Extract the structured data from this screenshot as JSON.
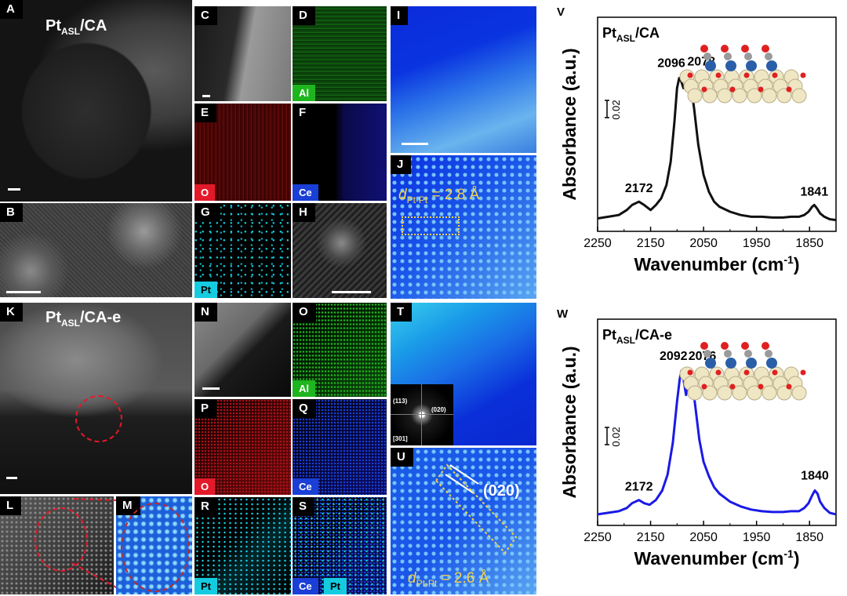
{
  "panels": {
    "A": "A",
    "B": "B",
    "C": "C",
    "D": "D",
    "E": "E",
    "F": "F",
    "G": "G",
    "H": "H",
    "I": "I",
    "J": "J",
    "K": "K",
    "L": "L",
    "M": "M",
    "N": "N",
    "O": "O",
    "P": "P",
    "Q": "Q",
    "R": "R",
    "S": "S",
    "T": "T",
    "U": "U",
    "V": "V",
    "W": "W"
  },
  "titles": {
    "top": {
      "main": "Pt",
      "sub": "ASL",
      "suffix": "/CA"
    },
    "bottom": {
      "main": "Pt",
      "sub": "ASL",
      "suffix": "/CA-e"
    }
  },
  "elements": {
    "al": "Al",
    "o": "O",
    "ce": "Ce",
    "pt": "Pt"
  },
  "colors": {
    "al": "#1fb51f",
    "o": "#e3192a",
    "ce": "#1a3fd6",
    "pt": "#15cbe0",
    "top_line": "#111111",
    "bottom_line": "#1a1ae6"
  },
  "annotations": {
    "d_symbol": "d",
    "d_sub": "Pt-Pt",
    "top_d_value": " = 2.8 Å",
    "bottom_d_value": " = 2.6 Å",
    "plane_label": "(020)",
    "fft_113": "(113)",
    "fft_020": "(020)",
    "fft_301": "[301]"
  },
  "chart_data": [
    {
      "type": "line",
      "panel": "V",
      "title": "Pt_ASL/CA",
      "xlabel": "Wavenumber (cm-1)",
      "ylabel": "Absorbance (a.u.)",
      "xlim": [
        2250,
        1800
      ],
      "x_ticks": [
        2250,
        2150,
        2050,
        1950,
        1850
      ],
      "x_tick_labels": [
        "2250",
        "2150",
        "2050",
        "1950",
        "1850"
      ],
      "scale_bar": "0.02",
      "peaks": [
        {
          "x": 2172,
          "y": 0.14,
          "label": "2172"
        },
        {
          "x": 2096,
          "y": 0.88,
          "label": "2096"
        },
        {
          "x": 2078,
          "y": 0.89,
          "label": "2078"
        },
        {
          "x": 1841,
          "y": 0.12,
          "label": "1841"
        }
      ],
      "series": [
        {
          "name": "Pt_ASL/CA",
          "x": [
            2250,
            2230,
            2210,
            2195,
            2185,
            2172,
            2162,
            2150,
            2140,
            2130,
            2120,
            2112,
            2105,
            2100,
            2096,
            2092,
            2088,
            2085,
            2082,
            2078,
            2074,
            2068,
            2060,
            2050,
            2040,
            2030,
            2020,
            2000,
            1980,
            1960,
            1940,
            1920,
            1900,
            1885,
            1870,
            1860,
            1852,
            1845,
            1841,
            1836,
            1830,
            1822,
            1812,
            1800
          ],
          "y": [
            0.04,
            0.05,
            0.06,
            0.09,
            0.12,
            0.14,
            0.12,
            0.09,
            0.12,
            0.16,
            0.24,
            0.38,
            0.62,
            0.82,
            0.88,
            0.86,
            0.82,
            0.84,
            0.88,
            0.89,
            0.84,
            0.7,
            0.48,
            0.3,
            0.2,
            0.14,
            0.11,
            0.08,
            0.06,
            0.05,
            0.05,
            0.045,
            0.045,
            0.05,
            0.05,
            0.06,
            0.08,
            0.11,
            0.12,
            0.1,
            0.07,
            0.05,
            0.035,
            0.03
          ]
        }
      ]
    },
    {
      "type": "line",
      "panel": "W",
      "title": "Pt_ASL/CA-e",
      "xlabel": "Wavenumber (cm-1)",
      "ylabel": "Absorbance (a.u.)",
      "xlim": [
        2250,
        1800
      ],
      "x_ticks": [
        2250,
        2150,
        2050,
        1950,
        1850
      ],
      "x_tick_labels": [
        "2250",
        "2150",
        "2050",
        "1950",
        "1850"
      ],
      "scale_bar": "0.02",
      "peaks": [
        {
          "x": 2172,
          "y": 0.12,
          "label": "2172"
        },
        {
          "x": 2092,
          "y": 0.93,
          "label": "2092"
        },
        {
          "x": 2076,
          "y": 0.93,
          "label": "2076"
        },
        {
          "x": 1840,
          "y": 0.18,
          "label": "1840"
        }
      ],
      "series": [
        {
          "name": "Pt_ASL/CA-e",
          "x": [
            2250,
            2230,
            2210,
            2195,
            2185,
            2172,
            2162,
            2152,
            2140,
            2128,
            2118,
            2108,
            2100,
            2095,
            2092,
            2089,
            2086,
            2083,
            2080,
            2076,
            2072,
            2066,
            2058,
            2050,
            2040,
            2030,
            2020,
            2000,
            1980,
            1960,
            1940,
            1920,
            1900,
            1885,
            1870,
            1860,
            1852,
            1845,
            1840,
            1835,
            1830,
            1822,
            1812,
            1800
          ],
          "y": [
            0.03,
            0.04,
            0.05,
            0.07,
            0.1,
            0.12,
            0.1,
            0.09,
            0.12,
            0.18,
            0.28,
            0.48,
            0.74,
            0.88,
            0.93,
            0.9,
            0.84,
            0.78,
            0.86,
            0.93,
            0.88,
            0.72,
            0.5,
            0.36,
            0.27,
            0.2,
            0.16,
            0.11,
            0.08,
            0.06,
            0.05,
            0.045,
            0.045,
            0.05,
            0.05,
            0.07,
            0.1,
            0.15,
            0.18,
            0.16,
            0.11,
            0.07,
            0.04,
            0.03
          ]
        }
      ]
    }
  ]
}
